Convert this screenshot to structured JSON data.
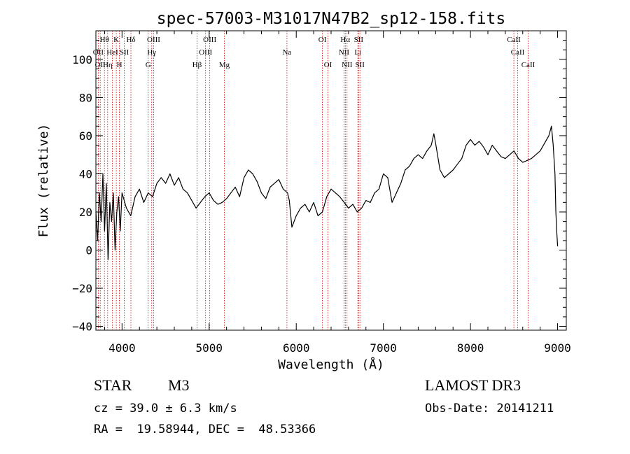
{
  "chart_data": {
    "type": "line",
    "title": "spec-57003-M31017N47B2_sp12-158.fits",
    "xlabel": "Wavelength (Å)",
    "ylabel": "Flux (relative)",
    "xlim": [
      3700,
      9100
    ],
    "ylim": [
      -42,
      115
    ],
    "x_ticks": [
      4000,
      5000,
      6000,
      7000,
      8000,
      9000
    ],
    "y_ticks": [
      -40,
      -20,
      0,
      20,
      40,
      60,
      80,
      100
    ],
    "grid": false,
    "series": [
      {
        "x": [
          3700,
          3720,
          3740,
          3760,
          3780,
          3800,
          3820,
          3840,
          3860,
          3880,
          3900,
          3920,
          3940,
          3960,
          3980,
          4000,
          4050,
          4100,
          4150,
          4200,
          4250,
          4300,
          4350,
          4400,
          4450,
          4500,
          4550,
          4600,
          4650,
          4700,
          4750,
          4800,
          4850,
          4900,
          4950,
          5000,
          5050,
          5100,
          5150,
          5200,
          5250,
          5300,
          5350,
          5400,
          5450,
          5500,
          5550,
          5600,
          5650,
          5700,
          5750,
          5800,
          5850,
          5900,
          5920,
          5950,
          6000,
          6050,
          6100,
          6150,
          6200,
          6250,
          6300,
          6350,
          6400,
          6450,
          6500,
          6550,
          6600,
          6650,
          6700,
          6750,
          6800,
          6850,
          6900,
          6950,
          7000,
          7050,
          7100,
          7150,
          7200,
          7250,
          7300,
          7350,
          7400,
          7450,
          7500,
          7550,
          7580,
          7600,
          7650,
          7700,
          7750,
          7800,
          7850,
          7900,
          7950,
          8000,
          8050,
          8100,
          8150,
          8200,
          8250,
          8300,
          8350,
          8400,
          8450,
          8500,
          8550,
          8600,
          8650,
          8700,
          8750,
          8800,
          8850,
          8900,
          8930,
          8950,
          8970,
          8980,
          8990,
          9000
        ],
        "values": [
          20,
          5,
          30,
          15,
          40,
          10,
          35,
          -5,
          25,
          15,
          30,
          0,
          20,
          28,
          10,
          30,
          22,
          18,
          28,
          32,
          25,
          30,
          28,
          35,
          38,
          35,
          40,
          34,
          38,
          32,
          30,
          26,
          22,
          25,
          28,
          30,
          26,
          24,
          25,
          27,
          30,
          33,
          28,
          38,
          42,
          40,
          36,
          30,
          27,
          33,
          35,
          37,
          32,
          30,
          26,
          12,
          18,
          22,
          24,
          20,
          25,
          18,
          20,
          28,
          32,
          30,
          28,
          25,
          22,
          24,
          20,
          22,
          26,
          25,
          30,
          32,
          40,
          38,
          25,
          30,
          35,
          42,
          44,
          48,
          50,
          48,
          52,
          55,
          61,
          56,
          42,
          38,
          40,
          42,
          45,
          48,
          55,
          58,
          55,
          57,
          54,
          50,
          55,
          52,
          49,
          48,
          50,
          52,
          48,
          46,
          47,
          48,
          50,
          52,
          56,
          60,
          65,
          55,
          40,
          20,
          10,
          2
        ]
      }
    ],
    "line_markers": [
      {
        "wavelength": 3727,
        "label": "OII",
        "row": 2
      },
      {
        "wavelength": 3750,
        "label": "OII",
        "row": 3
      },
      {
        "wavelength": 3798,
        "label": "Hθ",
        "row": 1
      },
      {
        "wavelength": 3835,
        "label": "Hη",
        "row": 3
      },
      {
        "wavelength": 3889,
        "label": "HeI",
        "row": 2
      },
      {
        "wavelength": 3934,
        "label": "K",
        "row": 1
      },
      {
        "wavelength": 3970,
        "label": "H",
        "row": 3
      },
      {
        "wavelength": 4026,
        "label": "SII",
        "row": 2
      },
      {
        "wavelength": 4102,
        "label": "Hδ",
        "row": 1
      },
      {
        "wavelength": 4300,
        "label": "G",
        "row": 3
      },
      {
        "wavelength": 4341,
        "label": "Hγ",
        "row": 2
      },
      {
        "wavelength": 4363,
        "label": "OIII",
        "row": 1
      },
      {
        "wavelength": 4861,
        "label": "Hβ",
        "row": 3
      },
      {
        "wavelength": 4959,
        "label": "OIII",
        "row": 2
      },
      {
        "wavelength": 5007,
        "label": "OIII",
        "row": 1
      },
      {
        "wavelength": 5175,
        "label": "Mg",
        "row": 3
      },
      {
        "wavelength": 5893,
        "label": "Na",
        "row": 2
      },
      {
        "wavelength": 6300,
        "label": "OI",
        "row": 1
      },
      {
        "wavelength": 6364,
        "label": "OI",
        "row": 3
      },
      {
        "wavelength": 6548,
        "label": "NII",
        "row": 2
      },
      {
        "wavelength": 6563,
        "label": "Hα",
        "row": 1
      },
      {
        "wavelength": 6583,
        "label": "NII",
        "row": 3
      },
      {
        "wavelength": 6707,
        "label": "Li",
        "row": 2
      },
      {
        "wavelength": 6716,
        "label": "SII",
        "row": 1
      },
      {
        "wavelength": 6731,
        "label": "SII",
        "row": 3
      },
      {
        "wavelength": 8498,
        "label": "CaII",
        "row": 1
      },
      {
        "wavelength": 8542,
        "label": "CaII",
        "row": 2
      },
      {
        "wavelength": 8662,
        "label": "CaII",
        "row": 3
      }
    ]
  },
  "info": {
    "object_class": "STAR",
    "subclass": "M3",
    "survey": "LAMOST DR3",
    "redshift_text": "cz = 39.0 ± 6.3 km/s",
    "obs_date_text": "Obs-Date: 20141211",
    "coords_text": "RA =  19.58944, DEC =  48.53366"
  },
  "colors": {
    "spectrum": "#000000",
    "line_markers": "#cc0000",
    "axes": "#000000"
  }
}
